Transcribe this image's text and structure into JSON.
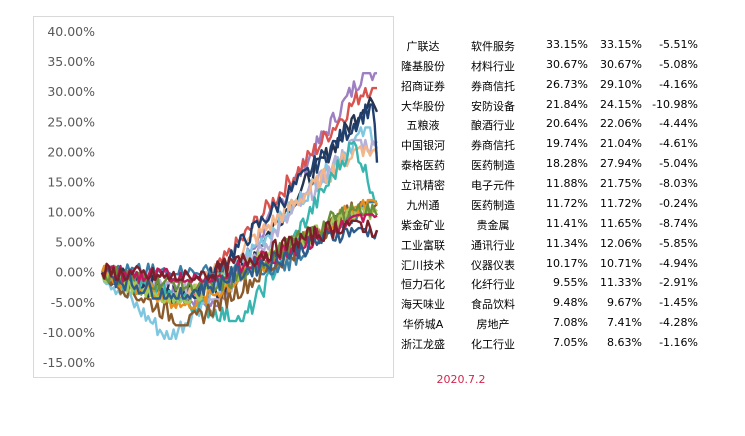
{
  "chart_data": {
    "type": "line",
    "y_ticks": [
      "40.00%",
      "35.00%",
      "30.00%",
      "25.00%",
      "20.00%",
      "15.00%",
      "10.00%",
      "5.00%",
      "0.00%",
      "-5.00%",
      "-10.00%",
      "-15.00%"
    ],
    "ylim": [
      -15,
      40
    ],
    "grid": false,
    "legend": "none",
    "num_points": 120,
    "series": [
      {
        "color": "#9e7fc2",
        "final": 33.15,
        "max": 33.15,
        "min": -5.51
      },
      {
        "color": "#d9534f",
        "final": 30.67,
        "max": 30.67,
        "min": -5.08
      },
      {
        "color": "#27344f",
        "final": 26.73,
        "max": 29.1,
        "min": -4.16
      },
      {
        "color": "#7fc7e0",
        "final": 21.84,
        "max": 24.15,
        "min": -10.98
      },
      {
        "color": "#b7b0d6",
        "final": 20.64,
        "max": 22.06,
        "min": -4.44
      },
      {
        "color": "#f3b58a",
        "final": 19.74,
        "max": 21.04,
        "min": -4.61
      },
      {
        "color": "#1f3f6e",
        "final": 18.28,
        "max": 27.94,
        "min": -5.04
      },
      {
        "color": "#39b5b0",
        "final": 11.88,
        "max": 21.75,
        "min": -8.03
      },
      {
        "color": "#3a7ea6",
        "final": 11.72,
        "max": 11.72,
        "min": -0.24
      },
      {
        "color": "#8a5a2b",
        "final": 11.41,
        "max": 11.65,
        "min": -8.74
      },
      {
        "color": "#e88f1f",
        "final": 11.34,
        "max": 12.06,
        "min": -5.85
      },
      {
        "color": "#a7c957",
        "final": 10.17,
        "max": 10.71,
        "min": -4.94
      },
      {
        "color": "#6a8f3a",
        "final": 9.55,
        "max": 11.33,
        "min": -2.91
      },
      {
        "color": "#c2185b",
        "final": 9.48,
        "max": 9.67,
        "min": -1.45
      },
      {
        "color": "#2e5c8a",
        "final": 7.08,
        "max": 7.41,
        "min": -4.28
      },
      {
        "color": "#7b1f2a",
        "final": 7.05,
        "max": 8.63,
        "min": -1.16
      }
    ]
  },
  "table": {
    "rows": [
      {
        "name": "广联达",
        "industry": "软件服务",
        "v1": "33.15%",
        "v2": "33.15%",
        "v3": "-5.51%"
      },
      {
        "name": "隆基股份",
        "industry": "材料行业",
        "v1": "30.67%",
        "v2": "30.67%",
        "v3": "-5.08%"
      },
      {
        "name": "招商证券",
        "industry": "券商信托",
        "v1": "26.73%",
        "v2": "29.10%",
        "v3": "-4.16%"
      },
      {
        "name": "大华股份",
        "industry": "安防设备",
        "v1": "21.84%",
        "v2": "24.15%",
        "v3": "-10.98%"
      },
      {
        "name": "五粮液",
        "industry": "酿酒行业",
        "v1": "20.64%",
        "v2": "22.06%",
        "v3": "-4.44%"
      },
      {
        "name": "中国银河",
        "industry": "券商信托",
        "v1": "19.74%",
        "v2": "21.04%",
        "v3": "-4.61%"
      },
      {
        "name": "泰格医药",
        "industry": "医药制造",
        "v1": "18.28%",
        "v2": "27.94%",
        "v3": "-5.04%"
      },
      {
        "name": "立讯精密",
        "industry": "电子元件",
        "v1": "11.88%",
        "v2": "21.75%",
        "v3": "-8.03%"
      },
      {
        "name": "九州通",
        "industry": "医药制造",
        "v1": "11.72%",
        "v2": "11.72%",
        "v3": "-0.24%"
      },
      {
        "name": "紫金矿业",
        "industry": "贵金属",
        "v1": "11.41%",
        "v2": "11.65%",
        "v3": "-8.74%"
      },
      {
        "name": "工业富联",
        "industry": "通讯行业",
        "v1": "11.34%",
        "v2": "12.06%",
        "v3": "-5.85%"
      },
      {
        "name": "汇川技术",
        "industry": "仪器仪表",
        "v1": "10.17%",
        "v2": "10.71%",
        "v3": "-4.94%"
      },
      {
        "name": "恒力石化",
        "industry": "化纤行业",
        "v1": "9.55%",
        "v2": "11.33%",
        "v3": "-2.91%"
      },
      {
        "name": "海天味业",
        "industry": "食品饮料",
        "v1": "9.48%",
        "v2": "9.67%",
        "v3": "-1.45%"
      },
      {
        "name": "华侨城A",
        "industry": "房地产",
        "v1": "7.08%",
        "v2": "7.41%",
        "v3": "-4.28%"
      },
      {
        "name": "浙江龙盛",
        "industry": "化工行业",
        "v1": "7.05%",
        "v2": "8.63%",
        "v3": "-1.16%"
      }
    ],
    "date": "2020.7.2"
  },
  "colors": {
    "date_text": "#d6244d",
    "axis_text": "#595959",
    "frame": "#d9d9d9"
  }
}
